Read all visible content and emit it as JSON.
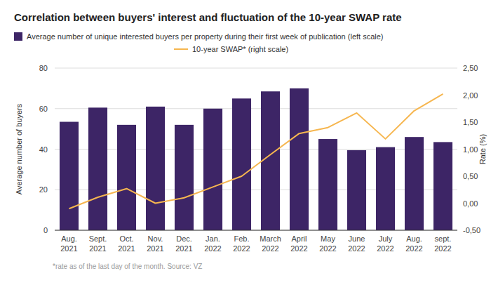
{
  "chart_data": {
    "type": "bar",
    "title": "Correlation between buyers' interest and fluctuation of the 10-year SWAP rate",
    "categories": [
      "Aug. 2021",
      "Sept. 2021",
      "Oct. 2021",
      "Nov. 2021",
      "Dec. 2021",
      "Jan. 2022",
      "Feb. 2022",
      "March 2022",
      "April 2022",
      "May 2022",
      "June 2022",
      "July 2022",
      "Aug. 2022",
      "sept. 2022"
    ],
    "series": [
      {
        "name": "Average number of unique interested buyers per property during their first week of publication (left scale)",
        "type": "bar",
        "color": "#3d2566",
        "values": [
          53.5,
          60.5,
          52,
          61,
          52,
          60,
          65,
          68.5,
          70,
          45,
          39.5,
          41,
          46,
          43.5
        ]
      },
      {
        "name": "10-year SWAP* (right scale)",
        "type": "line",
        "color": "#f6b64f",
        "axis": "y2",
        "values": [
          -0.1,
          0.11,
          0.27,
          0.0,
          0.1,
          0.3,
          0.5,
          0.9,
          1.29,
          1.4,
          1.67,
          1.19,
          1.71,
          2.02
        ]
      }
    ],
    "y_label": "Average number of buyers",
    "y2_label": "Rate (%)",
    "ylim": [
      0,
      80
    ],
    "yticks": [
      0,
      20,
      40,
      60,
      80
    ],
    "y2lim": [
      -0.5,
      2.5
    ],
    "y2ticks": [
      {
        "value": -0.5,
        "label": "-0,50"
      },
      {
        "value": 0,
        "label": "0,00"
      },
      {
        "value": 0.5,
        "label": "0,50"
      },
      {
        "value": 1,
        "label": "1,00"
      },
      {
        "value": 1.5,
        "label": "1,50"
      },
      {
        "value": 2,
        "label": "2,00"
      },
      {
        "value": 2.5,
        "label": "2,50"
      }
    ],
    "grid": true,
    "legend": "top",
    "footnote": "*rate as of the last day of the month. Source: VZ"
  }
}
